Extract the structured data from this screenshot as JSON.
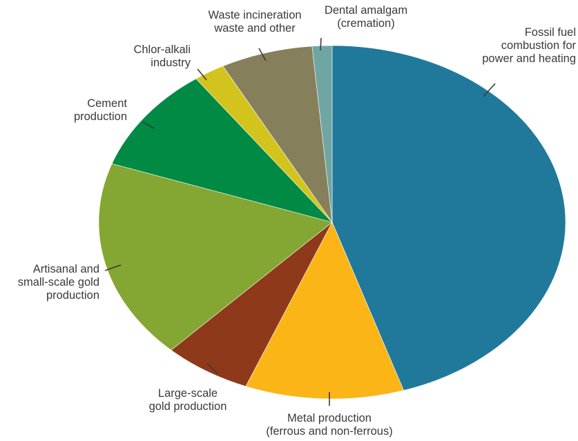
{
  "chart_data": {
    "type": "pie",
    "title": "",
    "start_angle_deg": -90,
    "direction": "clockwise",
    "slices": [
      {
        "label": [
          "Fossil fuel",
          "combustion for",
          "power and heating"
        ],
        "value": 45.9,
        "color": "#20799a"
      },
      {
        "label": [
          "Metal production",
          "(ferrous and non-ferrous)"
        ],
        "value": 11.2,
        "color": "#fbb517"
      },
      {
        "label": [
          "Large-scale",
          "gold production"
        ],
        "value": 6.2,
        "color": "#8e3a1a"
      },
      {
        "label": [
          "Artisanal and",
          "small-scale gold",
          "production"
        ],
        "value": 18.6,
        "color": "#84a633"
      },
      {
        "label": [
          "Cement",
          "production"
        ],
        "value": 9.9,
        "color": "#008a43"
      },
      {
        "label": [
          "Chlor-alkali",
          "industry"
        ],
        "value": 2.2,
        "color": "#d3c31d"
      },
      {
        "label": [
          "Waste incineration",
          "waste and other"
        ],
        "value": 6.5,
        "color": "#85805b"
      },
      {
        "label": [
          "Dental amalgam",
          "(cremation)"
        ],
        "value": 1.4,
        "color": "#6fa6a4"
      }
    ]
  }
}
